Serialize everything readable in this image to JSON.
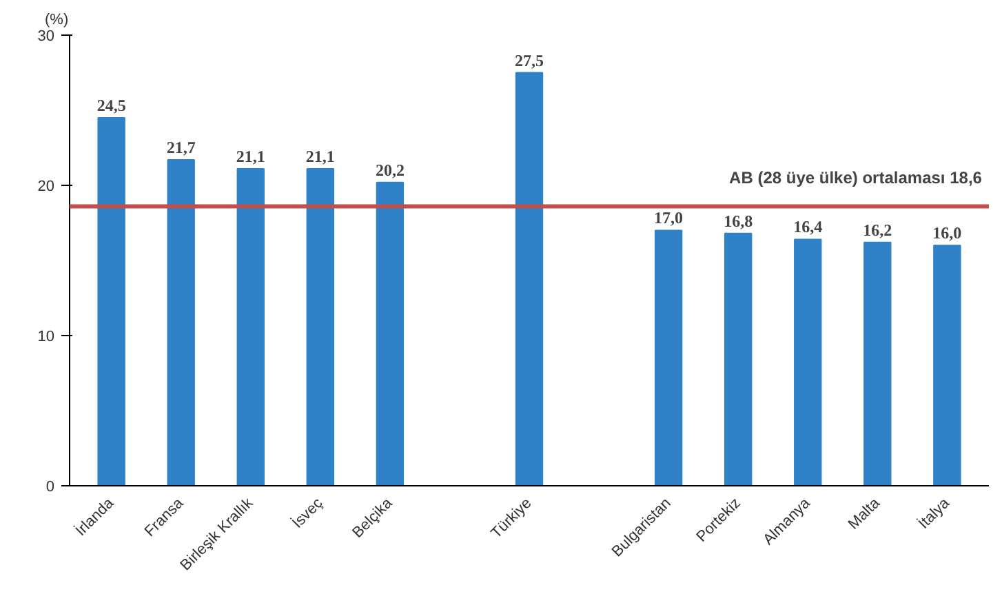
{
  "chart_data": {
    "type": "bar",
    "ylabel": "(%)",
    "categories": [
      "İrlanda",
      "Fransa",
      "Birleşik Krallık",
      "İsveç",
      "Belçika",
      null,
      "Türkiye",
      null,
      "Bulgaristan",
      "Portekiz",
      "Almanya",
      "Malta",
      "İtalya"
    ],
    "values": [
      24.5,
      21.7,
      21.1,
      21.1,
      20.2,
      null,
      27.5,
      null,
      17.0,
      16.8,
      16.4,
      16.2,
      16.0
    ],
    "value_labels": [
      "24,5",
      "21,7",
      "21,1",
      "21,1",
      "20,2",
      null,
      "27,5",
      null,
      "17,0",
      "16,8",
      "16,4",
      "16,2",
      "16,0"
    ],
    "color": "#2f82c8",
    "ylim": [
      0,
      30
    ],
    "yticks": [
      0,
      10,
      20,
      30
    ],
    "grid": false,
    "ref_lines": [
      {
        "axis": "y",
        "value": 18.6,
        "label": "AB (28 üye ülke) ortalaması 18,6",
        "color": "#c0504d"
      }
    ]
  }
}
